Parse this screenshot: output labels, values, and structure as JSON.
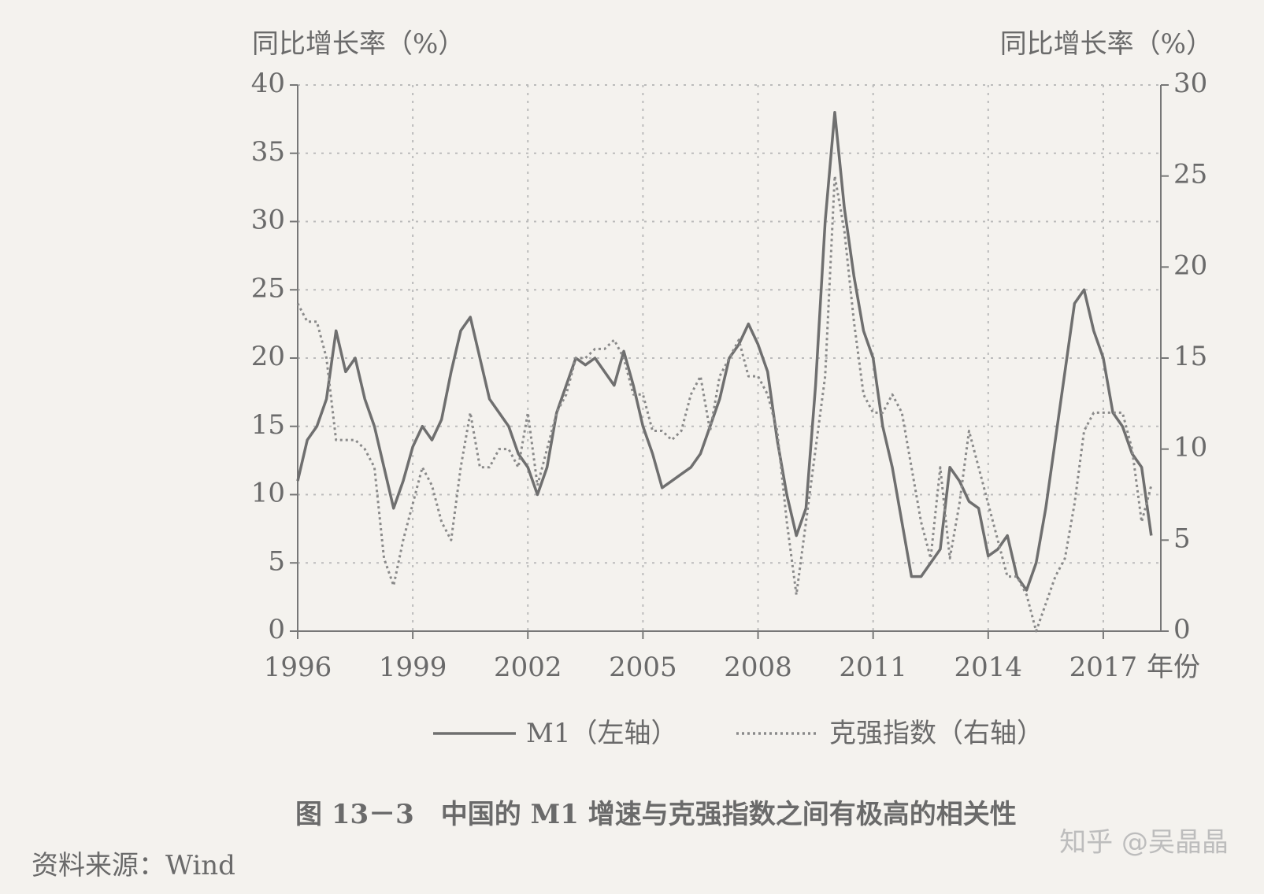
{
  "chart_data": {
    "type": "line",
    "y_label": "同比增长率（%）",
    "y2_label": "同比增长率（%）",
    "x_label": "年份",
    "caption": "图 13－3　中国的 M1 增速与克强指数之间有极高的相关性",
    "source": "资料来源：Wind",
    "watermark": "知乎 @吴晶晶",
    "xlim": [
      1996,
      2018.5
    ],
    "xticks": [
      1996,
      1999,
      2002,
      2005,
      2008,
      2011,
      2014,
      2017
    ],
    "ylim": [
      0,
      40
    ],
    "yticks": [
      0,
      5,
      10,
      15,
      20,
      25,
      30,
      35,
      40
    ],
    "y2lim": [
      0,
      30
    ],
    "y2ticks": [
      0,
      5,
      10,
      15,
      20,
      25,
      30
    ],
    "grid": true,
    "x": [
      1996,
      1996.25,
      1996.5,
      1996.75,
      1997,
      1997.25,
      1997.5,
      1997.75,
      1998,
      1998.25,
      1998.5,
      1998.75,
      1999,
      1999.25,
      1999.5,
      1999.75,
      2000,
      2000.25,
      2000.5,
      2000.75,
      2001,
      2001.25,
      2001.5,
      2001.75,
      2002,
      2002.25,
      2002.5,
      2002.75,
      2003,
      2003.25,
      2003.5,
      2003.75,
      2004,
      2004.25,
      2004.5,
      2004.75,
      2005,
      2005.25,
      2005.5,
      2005.75,
      2006,
      2006.25,
      2006.5,
      2006.75,
      2007,
      2007.25,
      2007.5,
      2007.75,
      2008,
      2008.25,
      2008.5,
      2008.75,
      2009,
      2009.25,
      2009.5,
      2009.75,
      2010,
      2010.25,
      2010.5,
      2010.75,
      2011,
      2011.25,
      2011.5,
      2011.75,
      2012,
      2012.25,
      2012.5,
      2012.75,
      2013,
      2013.25,
      2013.5,
      2013.75,
      2014,
      2014.25,
      2014.5,
      2014.75,
      2015,
      2015.25,
      2015.5,
      2015.75,
      2016,
      2016.25,
      2016.5,
      2016.75,
      2017,
      2017.25,
      2017.5,
      2017.75,
      2018,
      2018.25
    ],
    "series": [
      {
        "name": "M1（左轴）",
        "color": "#6f6f6f",
        "dash": "solid",
        "values": [
          11,
          14,
          15,
          17,
          22,
          19,
          20,
          17,
          15,
          12,
          9,
          11,
          13.5,
          15,
          14,
          15.5,
          19,
          22,
          23,
          20,
          17,
          16,
          15,
          13,
          12,
          10,
          12,
          16,
          18,
          20,
          19.5,
          20,
          19,
          18,
          20.5,
          18,
          15,
          13,
          10.5,
          11,
          11.5,
          12,
          13,
          15,
          17,
          20,
          21,
          22.5,
          21,
          19,
          14,
          10,
          7,
          9,
          18,
          30,
          38,
          31,
          26,
          22,
          20,
          15,
          12,
          8,
          4,
          4,
          5,
          6,
          12,
          11,
          9.5,
          9,
          5.5,
          6,
          7,
          4,
          3,
          5,
          9,
          14,
          19,
          24,
          25,
          22,
          20,
          16,
          15,
          13,
          12,
          7
        ]
      },
      {
        "name": "克强指数（右轴）",
        "color": "#8a8a8a",
        "dash": "dotted",
        "axis": "y2",
        "values": [
          18,
          17,
          17,
          15,
          10.5,
          10.5,
          10.5,
          10,
          9,
          4,
          2.5,
          5,
          7,
          9,
          8,
          6,
          5,
          9,
          12,
          9,
          9,
          10,
          10,
          9,
          12,
          8,
          10,
          12,
          13,
          15,
          15,
          15.5,
          15.5,
          16,
          15,
          13,
          13,
          11,
          11,
          10.5,
          11,
          13,
          14,
          11,
          14,
          15,
          16,
          14,
          14,
          13,
          11,
          6,
          2,
          6,
          10,
          14,
          25,
          22,
          17,
          13,
          12,
          12,
          13,
          12,
          9,
          6,
          4,
          9,
          4,
          7,
          11,
          9,
          7,
          5,
          3,
          3,
          2,
          0,
          1.5,
          3,
          4,
          7,
          11,
          12,
          12,
          12,
          12,
          10,
          6,
          8
        ]
      }
    ]
  }
}
